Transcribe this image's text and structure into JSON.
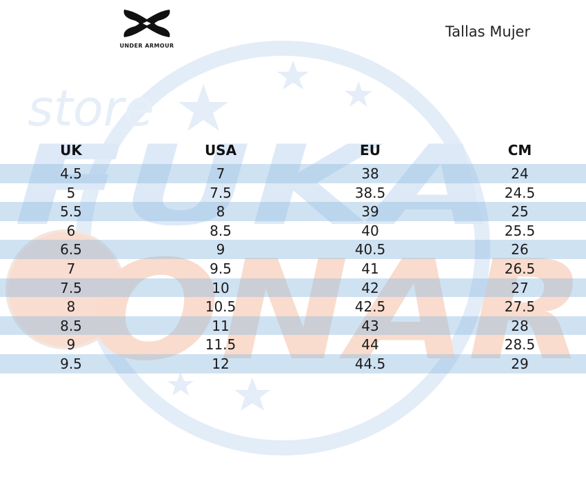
{
  "brand": {
    "name": "UNDER ARMOUR",
    "logo_icon": "under-armour-logo-icon"
  },
  "page": {
    "title": "Tallas Mujer"
  },
  "watermark": {
    "line1": "store",
    "line2": "FUKA",
    "line3": "ONAR",
    "colors": {
      "blue": "#c9dcf0",
      "orange": "#f6d2c0"
    }
  },
  "table": {
    "headers": [
      "UK",
      "USA",
      "EU",
      "CM"
    ],
    "rows": [
      [
        "4.5",
        "7",
        "38",
        "24"
      ],
      [
        "5",
        "7.5",
        "38.5",
        "24.5"
      ],
      [
        "5.5",
        "8",
        "39",
        "25"
      ],
      [
        "6",
        "8.5",
        "40",
        "25.5"
      ],
      [
        "6.5",
        "9",
        "40.5",
        "26"
      ],
      [
        "7",
        "9.5",
        "41",
        "26.5"
      ],
      [
        "7.5",
        "10",
        "42",
        "27"
      ],
      [
        "8",
        "10.5",
        "42.5",
        "27.5"
      ],
      [
        "8.5",
        "11",
        "43",
        "28"
      ],
      [
        "9",
        "11.5",
        "44",
        "28.5"
      ],
      [
        "9.5",
        "12",
        "44.5",
        "29"
      ]
    ],
    "stripe_color": "#8cb9e1"
  }
}
